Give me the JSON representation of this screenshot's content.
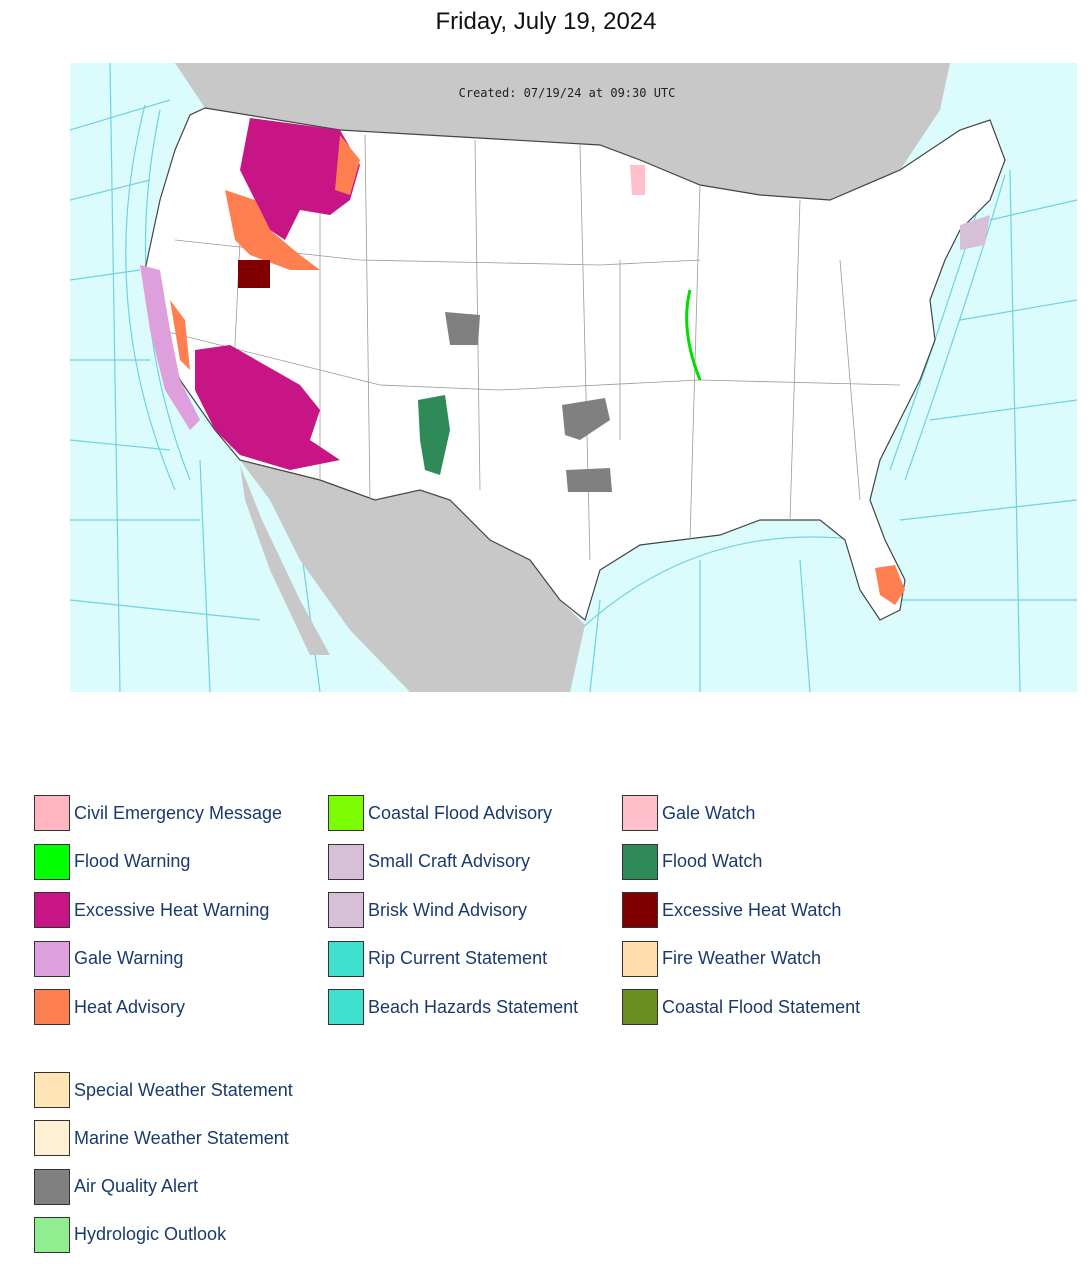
{
  "header": {
    "title": "Friday, July 19, 2024"
  },
  "map": {
    "created": "Created: 07/19/24 at 09:30 UTC"
  },
  "legend": {
    "groups": [
      {
        "columns": [
          [
            {
              "label": "Civil Emergency Message",
              "color": "#ffb6c1"
            },
            {
              "label": "Flood Warning",
              "color": "#00ff00"
            },
            {
              "label": "Excessive Heat Warning",
              "color": "#c71585"
            },
            {
              "label": "Gale Warning",
              "color": "#dda0dd"
            },
            {
              "label": "Heat Advisory",
              "color": "#ff7f50"
            }
          ],
          [
            {
              "label": "Coastal Flood Advisory",
              "color": "#7cfc00"
            },
            {
              "label": "Small Craft Advisory",
              "color": "#d8bfd8"
            },
            {
              "label": "Brisk Wind Advisory",
              "color": "#d8bfd8"
            },
            {
              "label": "Rip Current Statement",
              "color": "#40e0d0"
            },
            {
              "label": "Beach Hazards Statement",
              "color": "#40e0d0"
            }
          ],
          [
            {
              "label": "Gale Watch",
              "color": "#ffc0cb"
            },
            {
              "label": "Flood Watch",
              "color": "#2e8b57"
            },
            {
              "label": "Excessive Heat Watch",
              "color": "#800000"
            },
            {
              "label": "Fire Weather Watch",
              "color": "#ffdead"
            },
            {
              "label": "Coastal Flood Statement",
              "color": "#6b8e23"
            }
          ]
        ]
      },
      {
        "columns": [
          [
            {
              "label": "Special Weather Statement",
              "color": "#ffe4b5"
            },
            {
              "label": "Marine Weather Statement",
              "color": "#ffefd5"
            },
            {
              "label": "Air Quality Alert",
              "color": "#808080"
            },
            {
              "label": "Hydrologic Outlook",
              "color": "#90ee90"
            }
          ]
        ]
      }
    ]
  }
}
